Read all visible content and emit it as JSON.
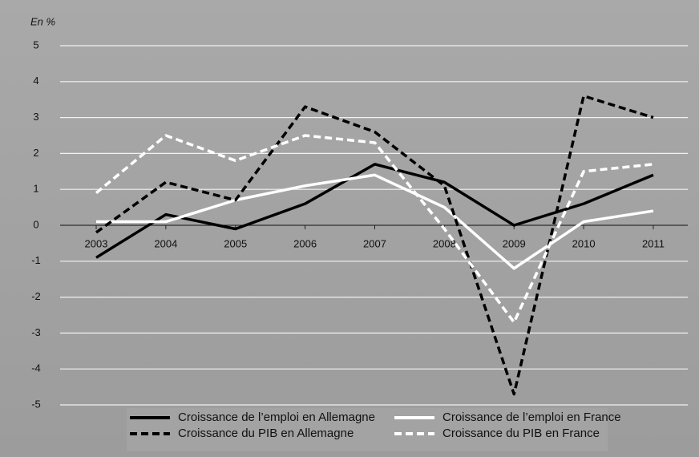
{
  "chart_data": {
    "type": "line",
    "y_label": "En %",
    "categories": [
      "2003",
      "2004",
      "2005",
      "2006",
      "2007",
      "2008",
      "2009",
      "2010",
      "2011"
    ],
    "series": [
      {
        "name": "Croissance de l’emploi en Allemagne",
        "color": "#000000",
        "dashed": false,
        "values": [
          -0.9,
          0.3,
          -0.1,
          0.6,
          1.7,
          1.2,
          0.0,
          0.6,
          1.4
        ]
      },
      {
        "name": "Croissance de l’emploi en France",
        "color": "#ffffff",
        "dashed": false,
        "values": [
          0.1,
          0.1,
          0.7,
          1.1,
          1.4,
          0.5,
          -1.2,
          0.1,
          0.4
        ]
      },
      {
        "name": "Croissance du PIB en Allemagne",
        "color": "#000000",
        "dashed": true,
        "values": [
          -0.2,
          1.2,
          0.7,
          3.3,
          2.6,
          1.1,
          -4.7,
          3.6,
          3.0
        ]
      },
      {
        "name": "Croissance du PIB en France",
        "color": "#ffffff",
        "dashed": true,
        "values": [
          0.9,
          2.5,
          1.8,
          2.5,
          2.3,
          -0.1,
          -2.7,
          1.5,
          1.7
        ]
      }
    ],
    "ylim": [
      -5,
      5
    ],
    "yticks": [
      -5,
      -4,
      -3,
      -2,
      -1,
      0,
      1,
      2,
      3,
      4,
      5
    ],
    "grid": true,
    "legend": "bottom"
  }
}
